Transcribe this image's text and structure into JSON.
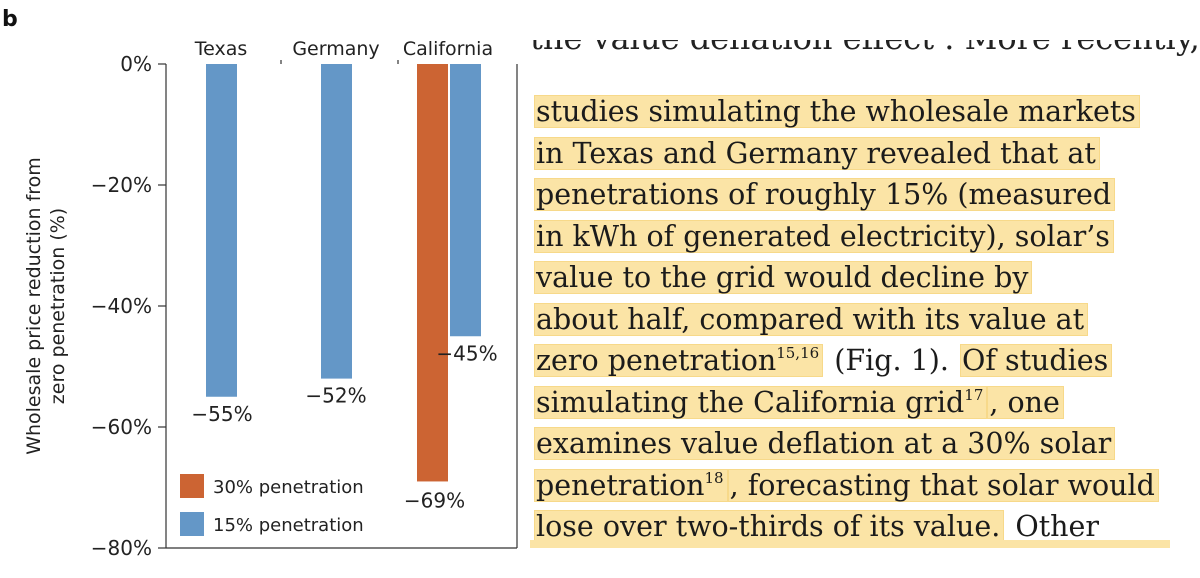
{
  "panel_letter": "b",
  "chart_data": {
    "type": "bar",
    "title": "",
    "xlabel": "",
    "ylabel_lines": [
      "Wholesale price reduction from",
      "zero penetration (%)"
    ],
    "ylim": [
      -80,
      0
    ],
    "yticks": [
      0,
      -20,
      -40,
      -60,
      -80
    ],
    "ytick_labels": [
      "0%",
      "−20%",
      "−40%",
      "−60%",
      "−80%"
    ],
    "categories": [
      "Texas",
      "Germany",
      "California"
    ],
    "series": [
      {
        "name": "30% penetration",
        "color": "#cc6433",
        "values": [
          null,
          null,
          -69
        ],
        "labels": [
          "",
          "",
          "−69%"
        ]
      },
      {
        "name": "15% penetration",
        "color": "#6497c7",
        "values": [
          -55,
          -52,
          -45
        ],
        "labels": [
          "−55%",
          "−52%",
          "−45%"
        ]
      }
    ],
    "legend": {
      "placement": "bottom-left",
      "entries": [
        "30% penetration",
        "15% penetration"
      ]
    }
  },
  "article": {
    "cut_top_line": "the value deflation effect . More recently,",
    "lines": [
      {
        "segments": [
          {
            "t": "studies simulating the wholesale markets",
            "hl": true
          }
        ]
      },
      {
        "segments": [
          {
            "t": "in Texas and Germany revealed that at",
            "hl": true
          }
        ]
      },
      {
        "segments": [
          {
            "t": "penetrations of roughly 15% (measured",
            "hl": true
          }
        ]
      },
      {
        "segments": [
          {
            "t": "in kWh of generated electricity), solar’s",
            "hl": true
          }
        ]
      },
      {
        "segments": [
          {
            "t": "value to the grid would decline by",
            "hl": true
          }
        ]
      },
      {
        "segments": [
          {
            "t": "about half, compared with its value at",
            "hl": true
          }
        ]
      },
      {
        "segments": [
          {
            "t": "zero penetration",
            "hl": true,
            "sup": "15,16"
          },
          {
            "t": " (Fig. 1). ",
            "hl": false
          },
          {
            "t": "Of studies",
            "hl": true
          }
        ]
      },
      {
        "segments": [
          {
            "t": "simulating the California grid",
            "hl": true,
            "sup": "17"
          },
          {
            "t": ", one",
            "hl": true
          }
        ]
      },
      {
        "segments": [
          {
            "t": "examines value deflation at a 30% solar",
            "hl": true
          }
        ]
      },
      {
        "segments": [
          {
            "t": "penetration",
            "hl": true,
            "sup": "18"
          },
          {
            "t": ", forecasting that solar would",
            "hl": true
          }
        ]
      },
      {
        "segments": [
          {
            "t": "lose over two-thirds of its value.",
            "hl": true
          },
          {
            "t": " Other",
            "hl": false
          }
        ]
      }
    ]
  }
}
